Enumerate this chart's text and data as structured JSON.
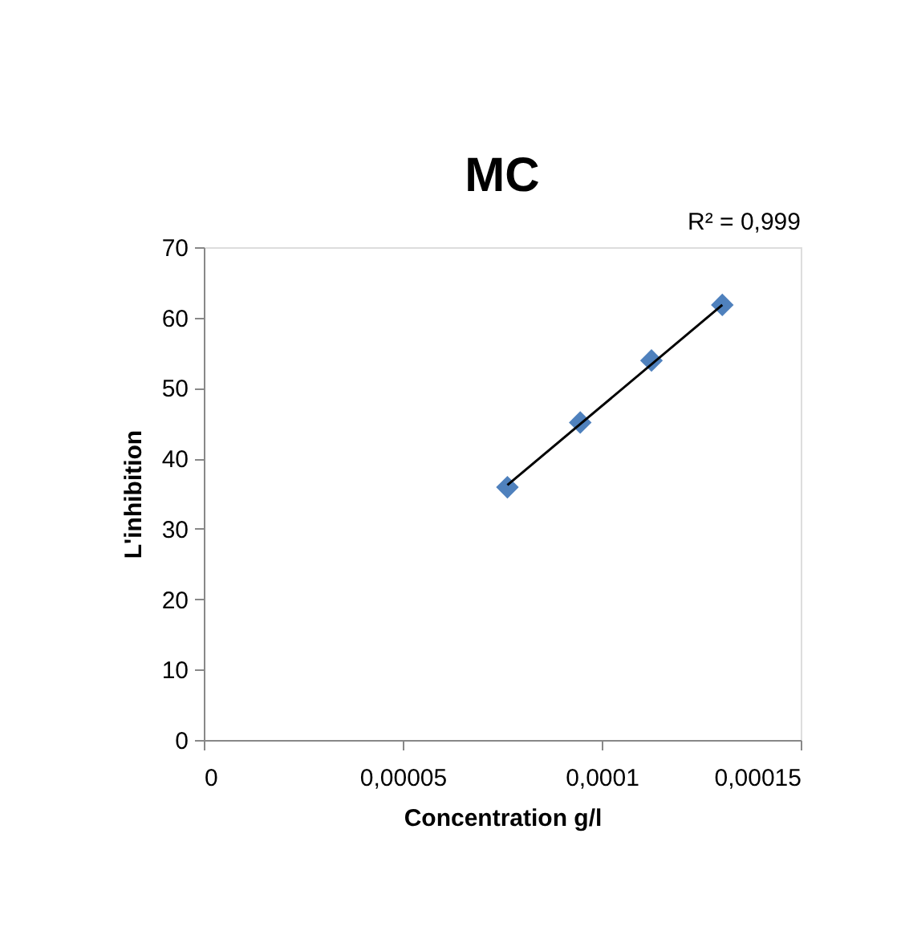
{
  "chart_data": {
    "type": "scatter",
    "title": "MC",
    "xlabel": "Concentration g/l",
    "ylabel": "L'inhibition",
    "annotations": [
      "R² = 0,999"
    ],
    "series": [
      {
        "color": "#4f81bd",
        "marker": "diamond",
        "x": [
          7.63e-05,
          9.46e-05,
          0.0001125,
          0.0001303
        ],
        "values": [
          35.9,
          45.1,
          53.9,
          61.8
        ]
      },
      {
        "type": "line",
        "color": "#000000",
        "marker": "none",
        "line_style": "solid",
        "x": [
          7.63e-05,
          0.0001303
        ],
        "values": [
          36.2,
          61.8
        ]
      }
    ],
    "xlim": [
      0,
      0.00015
    ],
    "xticks": [
      0,
      {
        "value": 5e-05,
        "label": "0,00005"
      },
      {
        "value": 0.0001,
        "label": "0,0001"
      },
      {
        "value": 0.00015,
        "label": "0,00015"
      }
    ],
    "ylim": [
      0,
      70
    ],
    "yticks": [
      0,
      10,
      20,
      30,
      40,
      50,
      60,
      70
    ],
    "grid": false
  }
}
